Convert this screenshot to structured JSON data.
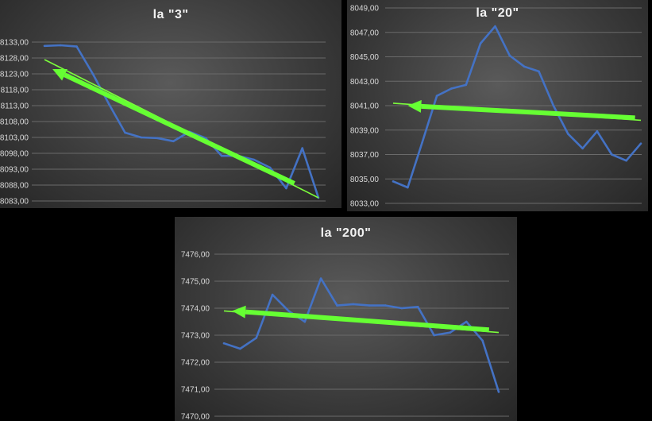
{
  "chart_data": [
    {
      "type": "line",
      "title": "la \"3\"",
      "yticks": [
        "8133,00",
        "8128,00",
        "8123,00",
        "8118,00",
        "8113,00",
        "8108,00",
        "8103,00",
        "8098,00",
        "8093,00",
        "8088,00",
        "8083,00"
      ],
      "ylim": [
        8083,
        8133
      ],
      "grid": true,
      "series": [
        {
          "values": [
            8131.8,
            8132.0,
            8131.6,
            8123.0,
            8113.5,
            8104.5,
            8103.0,
            8102.8,
            8101.8,
            8104.8,
            8102.8,
            8097.2,
            8097.2,
            8096.0,
            8093.5,
            8087.0,
            8099.6,
            8084.0
          ]
        }
      ],
      "trendline": {
        "start": 8127.5,
        "end": 8084.0
      },
      "arrow": {
        "from": [
          15.5,
          8088.5
        ],
        "to": [
          0.5,
          8124.5
        ]
      },
      "colors": {
        "series": "#4472c4",
        "trend": "#66ff33"
      }
    },
    {
      "type": "line",
      "title": "la \"20\"",
      "yticks": [
        "8049,00",
        "8047,00",
        "8045,00",
        "8043,00",
        "8041,00",
        "8039,00",
        "8037,00",
        "8035,00",
        "8033,00"
      ],
      "ylim": [
        8033,
        8049
      ],
      "grid": true,
      "series": [
        {
          "values": [
            8034.8,
            8034.3,
            8038.0,
            8041.8,
            8042.4,
            8042.7,
            8046.1,
            8047.5,
            8045.1,
            8044.2,
            8043.8,
            8041.0,
            8038.7,
            8037.5,
            8038.9,
            8037.0,
            8036.5,
            8037.9
          ]
        }
      ],
      "trendline": {
        "start": 8041.2,
        "end": 8039.8
      },
      "arrow": {
        "from": [
          16.6,
          8040.0
        ],
        "to": [
          1.0,
          8041.0
        ]
      },
      "colors": {
        "series": "#4472c4",
        "trend": "#66ff33"
      }
    },
    {
      "type": "line",
      "title": "la \"200\"",
      "yticks": [
        "7476,00",
        "7475,00",
        "7474,00",
        "7473,00",
        "7472,00",
        "7471,00",
        "7470,00"
      ],
      "ylim": [
        7470,
        7476
      ],
      "grid": true,
      "series": [
        {
          "values": [
            7472.7,
            7472.5,
            7472.9,
            7474.5,
            7473.9,
            7473.5,
            7475.1,
            7474.1,
            7474.15,
            7474.1,
            7474.1,
            7474.0,
            7474.05,
            7473.0,
            7473.1,
            7473.5,
            7472.8,
            7470.9
          ]
        }
      ],
      "trendline": {
        "start": 7473.9,
        "end": 7473.1
      },
      "arrow": {
        "from": [
          16.4,
          7473.2
        ],
        "to": [
          0.5,
          7473.9
        ]
      },
      "colors": {
        "series": "#4472c4",
        "trend": "#66ff33"
      }
    }
  ]
}
